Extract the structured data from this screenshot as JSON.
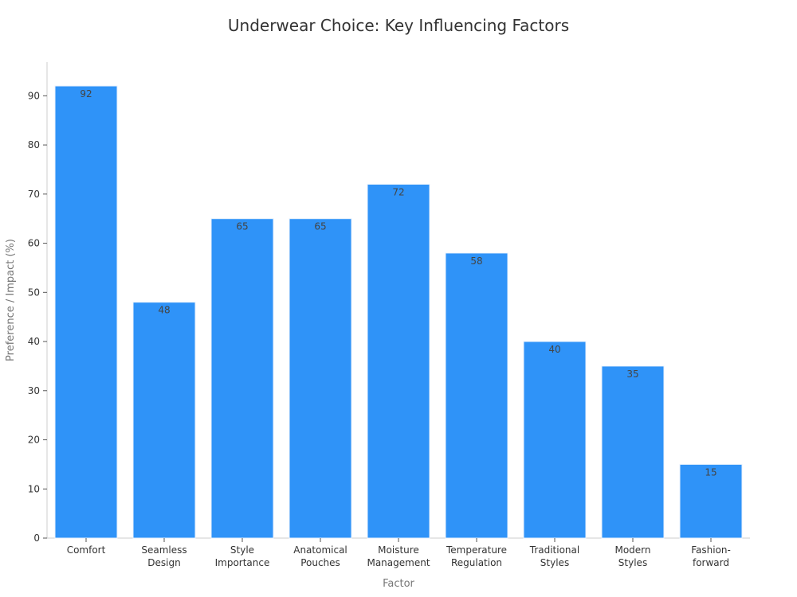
{
  "chart_data": {
    "type": "bar",
    "title": "Underwear Choice: Key Influencing Factors",
    "xlabel": "Factor",
    "ylabel": "Preference / Impact (%)",
    "categories": [
      [
        "Comfort"
      ],
      [
        "Seamless",
        "Design"
      ],
      [
        "Style",
        "Importance"
      ],
      [
        "Anatomical",
        "Pouches"
      ],
      [
        "Moisture",
        "Management"
      ],
      [
        "Temperature",
        "Regulation"
      ],
      [
        "Traditional",
        "Styles"
      ],
      [
        "Modern",
        "Styles"
      ],
      [
        "Fashion-",
        "forward"
      ]
    ],
    "values": [
      92,
      48,
      65,
      65,
      72,
      58,
      40,
      35,
      15
    ],
    "yticks": [
      0,
      10,
      20,
      30,
      40,
      50,
      60,
      70,
      80,
      90
    ],
    "ylim": [
      0,
      97
    ],
    "bar_color": "#2f93f8",
    "bar_edge_color": "#e8f2fc",
    "grid": false,
    "legend": false
  }
}
